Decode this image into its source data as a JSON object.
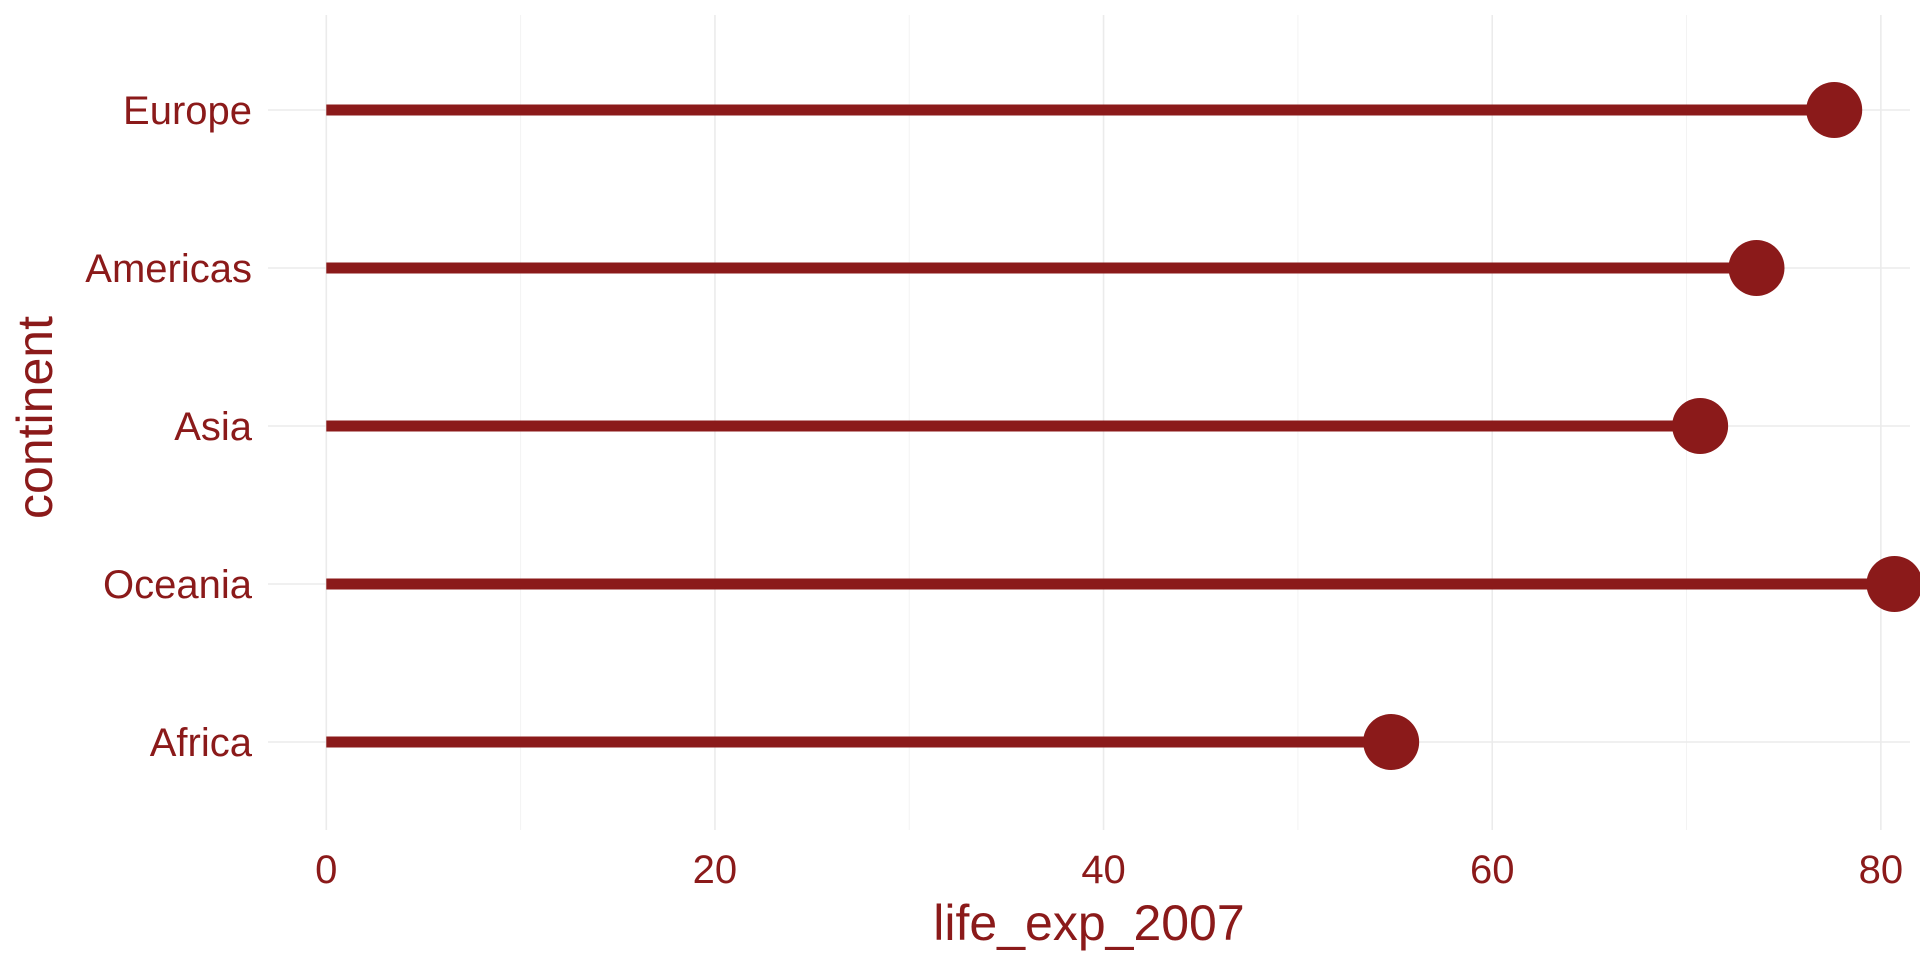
{
  "chart_data": {
    "type": "lollipop",
    "xlabel": "life_exp_2007",
    "ylabel": "continent",
    "xlim": [
      -3,
      81.5
    ],
    "x_ticks": [
      0,
      20,
      40,
      60,
      80
    ],
    "x_tick_labels": [
      "0",
      "20",
      "40",
      "60",
      "80"
    ],
    "categories": [
      "Europe",
      "Americas",
      "Asia",
      "Oceania",
      "Africa"
    ],
    "values": [
      77.6,
      73.6,
      70.7,
      80.7,
      54.8
    ],
    "grid": true,
    "legend": "none",
    "colors": {
      "stem": "#8b1a1a",
      "point": "#8b1a1a",
      "text": "#8b1a1a",
      "grid": "#ebebeb",
      "background": "#ffffff"
    }
  }
}
